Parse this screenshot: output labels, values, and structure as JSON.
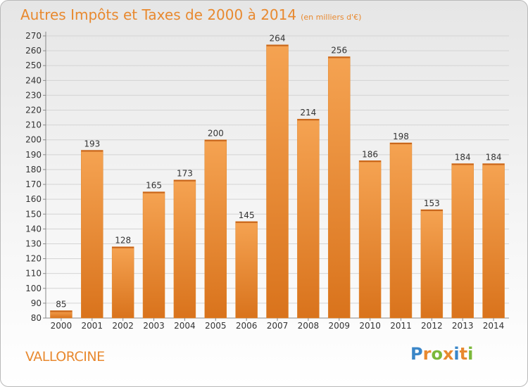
{
  "title": "Autres Impôts et Taxes de 2000 à 2014",
  "subtitle": "(en milliers d'€)",
  "city": "VALLORCINE",
  "logo": {
    "letters": [
      "P",
      "r",
      "o",
      "x",
      "i",
      "t",
      "i"
    ],
    "colors": [
      "#3a86c8",
      "#e8892f",
      "#7bb83a",
      "#e8892f",
      "#3a86c8",
      "#e8892f",
      "#7bb83a"
    ]
  },
  "colors": {
    "bar_top": "#f5a352",
    "bar_bottom": "#d9731c",
    "text": "#e8892f",
    "grid": "#d4d4d4"
  },
  "chart_data": {
    "type": "bar",
    "title": "Autres Impôts et Taxes de 2000 à 2014",
    "categories": [
      "2000",
      "2001",
      "2002",
      "2003",
      "2004",
      "2005",
      "2006",
      "2007",
      "2008",
      "2009",
      "2010",
      "2011",
      "2012",
      "2013",
      "2014"
    ],
    "values": [
      85,
      193,
      128,
      165,
      173,
      200,
      145,
      264,
      214,
      256,
      186,
      198,
      153,
      184,
      184
    ],
    "ylim": [
      80,
      270
    ],
    "yticks": [
      80,
      90,
      100,
      110,
      120,
      130,
      140,
      150,
      160,
      170,
      180,
      190,
      200,
      210,
      220,
      230,
      240,
      250,
      260,
      270
    ],
    "grid": true,
    "data_labels": true
  }
}
